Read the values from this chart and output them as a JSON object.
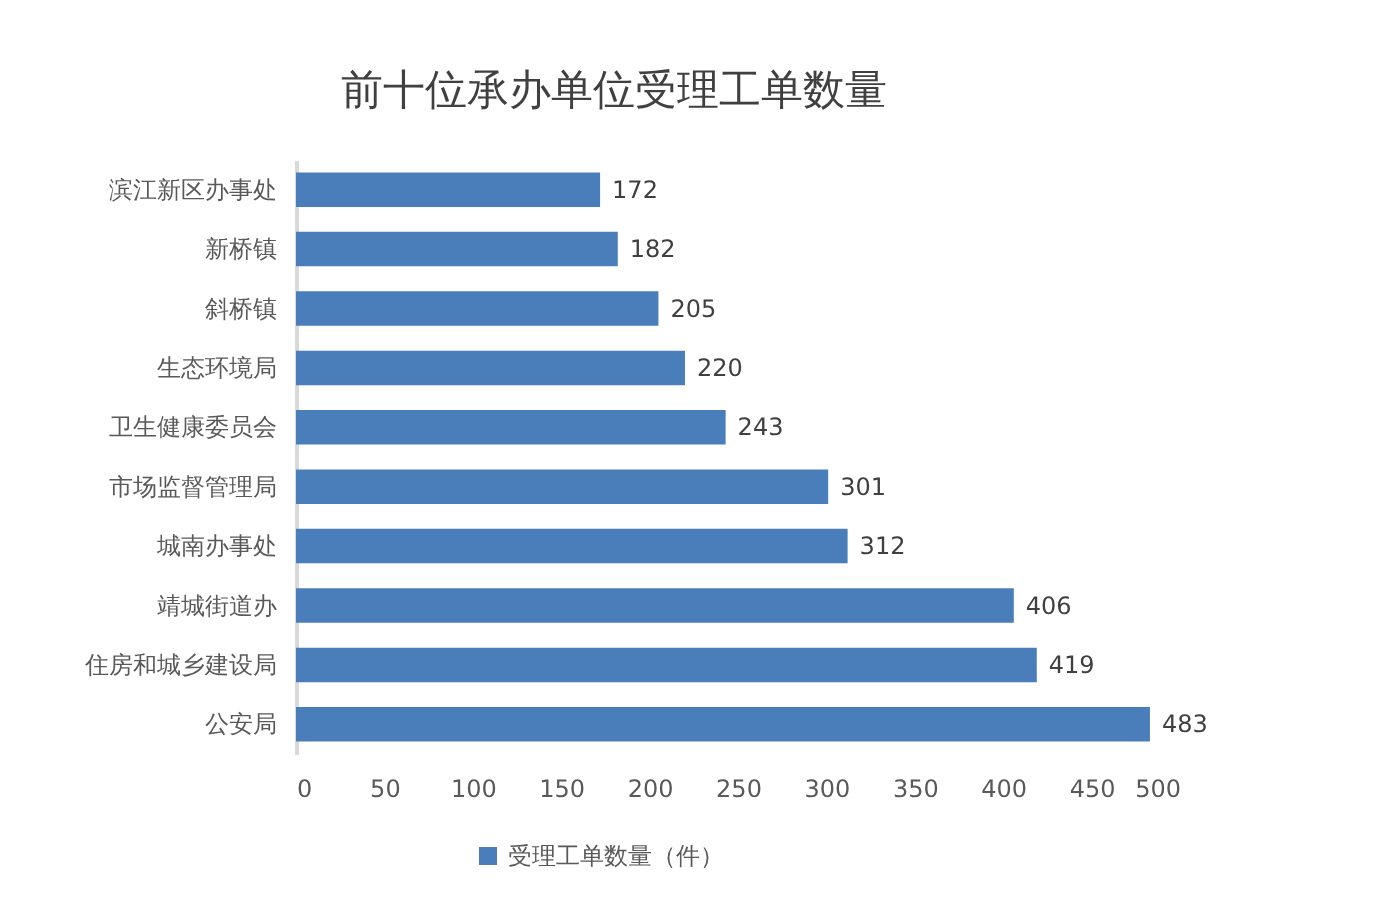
{
  "chart_data": {
    "type": "bar",
    "orientation": "horizontal",
    "title": "前十位承办单位受理工单数量",
    "categories": [
      "滨江新区办事处",
      "新桥镇",
      "斜桥镇",
      "生态环境局",
      "卫生健康委员会",
      "市场监督管理局",
      "城南办事处",
      "靖城街道办",
      "住房和城乡建设局",
      "公安局"
    ],
    "series": [
      {
        "name": "受理工单数量（件）",
        "color": "#4a7ebb",
        "values": [
          172,
          182,
          205,
          220,
          243,
          301,
          312,
          406,
          419,
          483
        ]
      }
    ],
    "xlim": [
      0,
      500
    ],
    "xticks": [
      0,
      50,
      100,
      150,
      200,
      250,
      300,
      350,
      400,
      450,
      500
    ],
    "data_labels": true,
    "grid": false,
    "legend": "bottom"
  }
}
